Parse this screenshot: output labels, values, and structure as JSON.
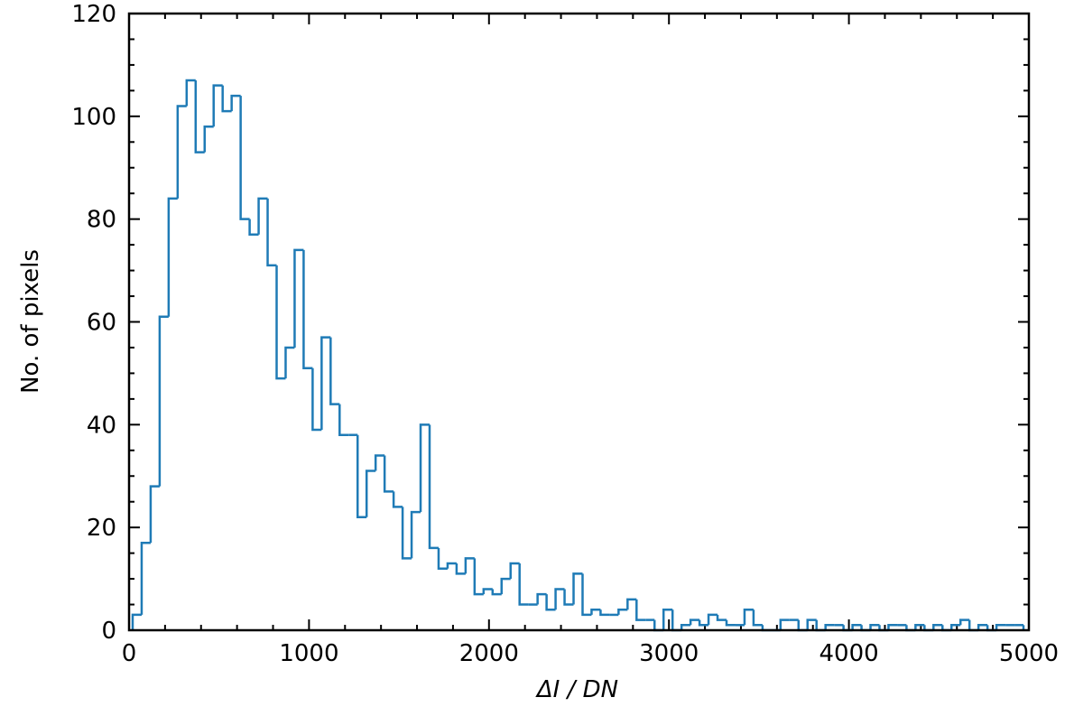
{
  "chart_data": {
    "type": "histogram",
    "histtype": "step",
    "color": "#1f7bb6",
    "xlabel": "ΔI / DN",
    "ylabel": "No. of pixels",
    "xlim": [
      0,
      5000
    ],
    "ylim": [
      0,
      120
    ],
    "xticks": [
      0,
      1000,
      2000,
      3000,
      4000,
      5000
    ],
    "yticks": [
      0,
      20,
      40,
      60,
      80,
      100,
      120
    ],
    "bins": [
      20,
      70,
      120,
      170,
      220,
      270,
      320,
      370,
      420,
      470,
      520,
      570,
      620,
      670,
      720,
      770,
      820,
      870,
      920,
      970,
      1020,
      1070,
      1120,
      1170,
      1220,
      1270,
      1320,
      1370,
      1420,
      1470,
      1520,
      1570,
      1620,
      1670,
      1720,
      1770,
      1820,
      1870,
      1920,
      1970,
      2020,
      2070,
      2120,
      2170,
      2220,
      2270,
      2320,
      2370,
      2420,
      2470,
      2520,
      2570,
      2620,
      2670,
      2720,
      2770,
      2820,
      2870,
      2920,
      2970,
      3020,
      3070,
      3120,
      3170,
      3220,
      3270,
      3320,
      3370,
      3420,
      3470,
      3520,
      3570,
      3620,
      3670,
      3720,
      3770,
      3820,
      3870,
      3920,
      3970,
      4020,
      4070,
      4120,
      4170,
      4220,
      4270,
      4320,
      4370,
      4420,
      4470,
      4520,
      4570,
      4620,
      4670,
      4720,
      4770,
      4820,
      4870,
      4920,
      4970
    ],
    "values": [
      3,
      17,
      28,
      61,
      84,
      102,
      107,
      93,
      98,
      106,
      101,
      104,
      80,
      77,
      84,
      71,
      49,
      55,
      74,
      51,
      39,
      57,
      44,
      38,
      38,
      22,
      31,
      34,
      27,
      24,
      14,
      23,
      40,
      16,
      12,
      13,
      11,
      14,
      7,
      8,
      7,
      10,
      13,
      5,
      5,
      7,
      4,
      8,
      5,
      11,
      3,
      4,
      3,
      3,
      4,
      6,
      2,
      2,
      0,
      4,
      0,
      1,
      2,
      1,
      3,
      2,
      1,
      1,
      4,
      1,
      0,
      0,
      2,
      2,
      0,
      2,
      0,
      1,
      1,
      0,
      1,
      0,
      1,
      0,
      1,
      1,
      0,
      1,
      0,
      1,
      0,
      1,
      2,
      0,
      1,
      0,
      1,
      1,
      1
    ]
  }
}
